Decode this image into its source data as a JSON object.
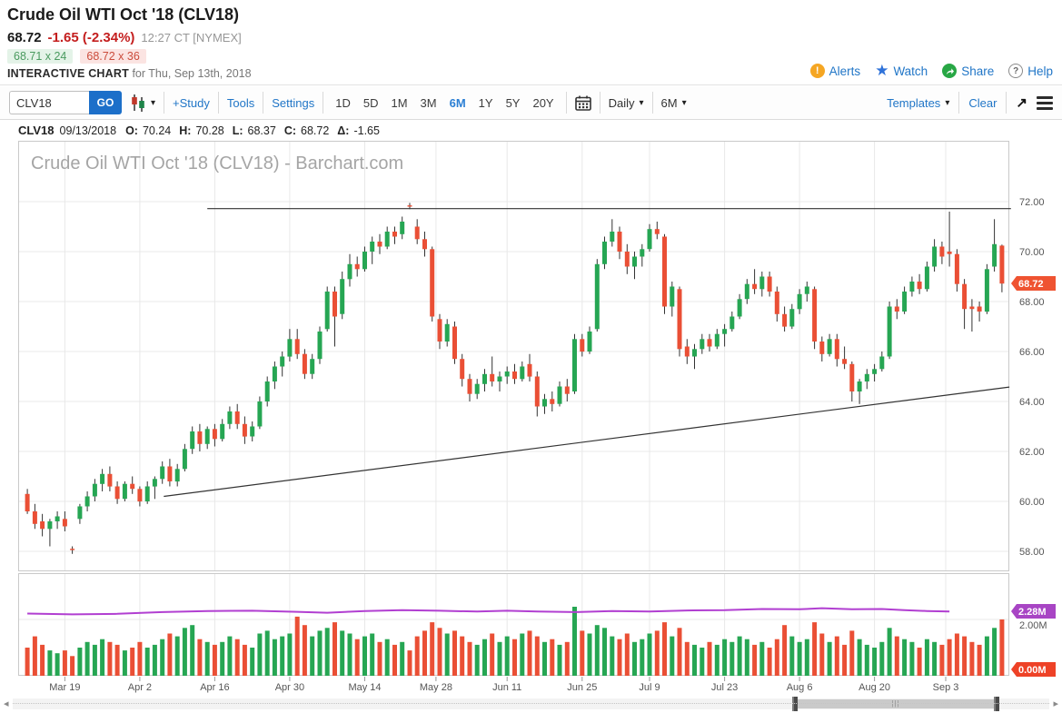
{
  "header": {
    "title": "Crude Oil WTI Oct '18 (CLV18)",
    "last_price": "68.72",
    "change": "-1.65 (-2.34%)",
    "quote_time": "12:27 CT [NYMEX]",
    "bid": "68.71 x 24",
    "ask": "68.72 x 36",
    "subtitle_bold": "INTERACTIVE CHART",
    "subtitle_rest": " for Thu, Sep 13th, 2018",
    "links": {
      "alerts": "Alerts",
      "watch": "Watch",
      "share": "Share",
      "help": "Help"
    },
    "icons": {
      "alerts": "exclamation-circle",
      "watch": "star",
      "share": "share-arrow",
      "help": "question-circle"
    },
    "colors": {
      "alerts": "#f5a623",
      "watch": "#2f72d9",
      "share": "#28a745",
      "change_red": "#c41e1e"
    }
  },
  "toolbar": {
    "symbol_value": "CLV18",
    "go_label": "GO",
    "icons": {
      "chart_type": "candlestick",
      "calendar": "calendar",
      "expand": "arrow-up-right",
      "menu": "hamburger"
    },
    "study_label": "+Study",
    "tools_label": "Tools",
    "settings_label": "Settings",
    "ranges": [
      "1D",
      "5D",
      "1M",
      "3M",
      "6M",
      "1Y",
      "5Y",
      "20Y"
    ],
    "active_range": "6M",
    "frequency_label": "Daily",
    "zoom_label": "6M",
    "templates_label": "Templates",
    "clear_label": "Clear"
  },
  "ohlc_row": {
    "symbol": "CLV18",
    "date": "09/13/2018",
    "items": [
      {
        "label": "O:",
        "value": "70.24"
      },
      {
        "label": "H:",
        "value": "70.28"
      },
      {
        "label": "L:",
        "value": "68.37"
      },
      {
        "label": "C:",
        "value": "68.72"
      },
      {
        "label": "Δ:",
        "value": "-1.65"
      }
    ]
  },
  "chart_data": {
    "type": "candlestick",
    "watermark": "Crude Oil WTI Oct '18 (CLV18) - Barchart.com",
    "symbol": "CLV18",
    "frequency": "Daily",
    "range": "6M",
    "last_price_value": 68.72,
    "last_price_label": "68.72",
    "price_axis": {
      "values": [
        72,
        70,
        68,
        66,
        64,
        62,
        60,
        58
      ],
      "min": 57.5,
      "max": 72.6
    },
    "volume_axis": {
      "grid_label": "2.00M",
      "zero_label": "0.00M",
      "grid_value": 2.0,
      "units": "M"
    },
    "open_interest": {
      "label": "2.28M",
      "value": 2.28,
      "points": [
        [
          0,
          2.21
        ],
        [
          6,
          2.18
        ],
        [
          12,
          2.2
        ],
        [
          18,
          2.26
        ],
        [
          24,
          2.3
        ],
        [
          30,
          2.31
        ],
        [
          36,
          2.27
        ],
        [
          40,
          2.24
        ],
        [
          45,
          2.3
        ],
        [
          50,
          2.33
        ],
        [
          55,
          2.31
        ],
        [
          60,
          2.28
        ],
        [
          64,
          2.31
        ],
        [
          68,
          2.28
        ],
        [
          73,
          2.26
        ],
        [
          78,
          2.3
        ],
        [
          83,
          2.28
        ],
        [
          88,
          2.32
        ],
        [
          93,
          2.33
        ],
        [
          98,
          2.37
        ],
        [
          103,
          2.36
        ],
        [
          106,
          2.4
        ],
        [
          110,
          2.36
        ],
        [
          114,
          2.37
        ],
        [
          117,
          2.33
        ],
        [
          120,
          2.3
        ],
        [
          123,
          2.28
        ]
      ]
    },
    "date_ticks": [
      {
        "label": "Mar 19",
        "index": 5
      },
      {
        "label": "Apr 2",
        "index": 15
      },
      {
        "label": "Apr 16",
        "index": 25
      },
      {
        "label": "Apr 30",
        "index": 35
      },
      {
        "label": "May 14",
        "index": 45
      },
      {
        "label": "May 28",
        "index": 54.5
      },
      {
        "label": "Jun 11",
        "index": 64
      },
      {
        "label": "Jun 25",
        "index": 74
      },
      {
        "label": "Jul 9",
        "index": 83
      },
      {
        "label": "Jul 23",
        "index": 93
      },
      {
        "label": "Aug 6",
        "index": 103
      },
      {
        "label": "Aug 20",
        "index": 113
      },
      {
        "label": "Sep 3",
        "index": 122.5
      }
    ],
    "trendlines": [
      {
        "name": "horizontal-resistance",
        "from": [
          24,
          71.72
        ],
        "to": [
          131.2,
          71.72
        ]
      },
      {
        "name": "ascending-support",
        "from": [
          18.2,
          60.2
        ],
        "to": [
          131,
          64.58
        ]
      }
    ],
    "candles": [
      [
        60.3,
        60.5,
        59.5,
        59.6
      ],
      [
        59.6,
        59.9,
        58.9,
        59.1
      ],
      [
        59.2,
        59.5,
        58.6,
        58.9
      ],
      [
        58.9,
        59.3,
        58.2,
        59.2
      ],
      [
        59.2,
        59.6,
        58.9,
        59.4
      ],
      [
        59.3,
        59.6,
        58.8,
        59.0
      ],
      [
        58.1,
        58.2,
        57.9,
        58.05
      ],
      [
        59.3,
        59.9,
        59.1,
        59.8
      ],
      [
        59.8,
        60.4,
        59.6,
        60.2
      ],
      [
        60.2,
        60.9,
        60.0,
        60.7
      ],
      [
        60.7,
        61.3,
        60.4,
        61.1
      ],
      [
        61.1,
        61.4,
        60.4,
        60.6
      ],
      [
        60.6,
        60.8,
        59.9,
        60.1
      ],
      [
        60.1,
        60.8,
        60.0,
        60.7
      ],
      [
        60.7,
        61.0,
        60.3,
        60.5
      ],
      [
        60.5,
        60.6,
        59.8,
        60.0
      ],
      [
        60.0,
        60.8,
        59.9,
        60.6
      ],
      [
        60.6,
        61.0,
        60.1,
        60.9
      ],
      [
        60.9,
        61.6,
        60.7,
        61.4
      ],
      [
        61.4,
        61.7,
        60.6,
        60.8
      ],
      [
        60.8,
        61.5,
        60.6,
        61.3
      ],
      [
        61.3,
        62.3,
        61.2,
        62.1
      ],
      [
        62.1,
        63.0,
        61.9,
        62.8
      ],
      [
        62.8,
        63.1,
        62.0,
        62.3
      ],
      [
        62.3,
        63.0,
        62.1,
        62.9
      ],
      [
        62.9,
        63.1,
        62.2,
        62.5
      ],
      [
        62.5,
        63.3,
        62.4,
        63.1
      ],
      [
        63.1,
        63.8,
        62.9,
        63.6
      ],
      [
        63.6,
        63.9,
        62.9,
        63.1
      ],
      [
        63.1,
        63.4,
        62.3,
        62.6
      ],
      [
        62.6,
        63.2,
        62.4,
        63.0
      ],
      [
        63.0,
        64.2,
        62.9,
        64.0
      ],
      [
        64.0,
        65.0,
        63.8,
        64.8
      ],
      [
        64.8,
        65.6,
        64.5,
        65.4
      ],
      [
        65.4,
        66.0,
        65.0,
        65.8
      ],
      [
        65.8,
        66.9,
        65.6,
        66.5
      ],
      [
        66.5,
        66.9,
        65.7,
        65.9
      ],
      [
        65.9,
        66.1,
        64.9,
        65.1
      ],
      [
        65.1,
        65.9,
        64.9,
        65.7
      ],
      [
        65.7,
        67.0,
        65.5,
        66.8
      ],
      [
        66.9,
        68.6,
        66.8,
        68.4
      ],
      [
        68.4,
        68.6,
        66.2,
        67.4
      ],
      [
        67.5,
        69.2,
        67.3,
        68.9
      ],
      [
        68.9,
        69.9,
        68.6,
        69.5
      ],
      [
        69.5,
        69.8,
        69.0,
        69.3
      ],
      [
        69.3,
        70.2,
        69.2,
        70.0
      ],
      [
        70.0,
        70.6,
        69.5,
        70.4
      ],
      [
        70.4,
        70.7,
        69.9,
        70.2
      ],
      [
        70.2,
        71.0,
        70.1,
        70.8
      ],
      [
        70.8,
        71.0,
        70.3,
        70.6
      ],
      [
        70.7,
        71.4,
        70.5,
        71.2
      ],
      [
        71.85,
        71.95,
        71.7,
        71.8
      ],
      [
        71.0,
        71.3,
        70.3,
        70.5
      ],
      [
        70.5,
        70.8,
        69.8,
        70.1
      ],
      [
        70.1,
        70.2,
        67.2,
        67.4
      ],
      [
        67.3,
        67.5,
        66.1,
        66.4
      ],
      [
        66.4,
        67.3,
        66.2,
        67.1
      ],
      [
        67.0,
        67.2,
        65.5,
        65.7
      ],
      [
        65.7,
        65.9,
        64.6,
        64.9
      ],
      [
        64.9,
        65.1,
        64.0,
        64.3
      ],
      [
        64.3,
        64.9,
        64.1,
        64.7
      ],
      [
        64.7,
        65.3,
        64.4,
        65.1
      ],
      [
        65.1,
        65.8,
        64.6,
        64.8
      ],
      [
        64.8,
        65.2,
        64.4,
        65.0
      ],
      [
        65.0,
        65.4,
        64.7,
        65.2
      ],
      [
        65.2,
        65.5,
        64.7,
        64.9
      ],
      [
        64.9,
        65.6,
        64.8,
        65.4
      ],
      [
        65.5,
        65.9,
        64.8,
        65.0
      ],
      [
        65.0,
        65.2,
        63.4,
        63.8
      ],
      [
        63.8,
        64.3,
        63.5,
        64.1
      ],
      [
        64.1,
        64.4,
        63.6,
        63.9
      ],
      [
        63.9,
        64.8,
        63.8,
        64.6
      ],
      [
        64.6,
        64.9,
        64.0,
        64.3
      ],
      [
        64.4,
        66.7,
        64.3,
        66.5
      ],
      [
        66.5,
        66.7,
        65.8,
        66.0
      ],
      [
        66.0,
        67.0,
        65.9,
        66.8
      ],
      [
        66.9,
        69.7,
        66.8,
        69.5
      ],
      [
        69.5,
        70.6,
        69.3,
        70.4
      ],
      [
        70.4,
        71.3,
        70.2,
        70.8
      ],
      [
        70.8,
        71.0,
        69.7,
        70.0
      ],
      [
        70.0,
        70.3,
        69.1,
        69.4
      ],
      [
        69.4,
        70.0,
        68.9,
        69.8
      ],
      [
        69.8,
        70.3,
        69.4,
        70.1
      ],
      [
        70.1,
        71.1,
        70.0,
        70.9
      ],
      [
        70.9,
        71.2,
        70.5,
        70.7
      ],
      [
        70.6,
        70.7,
        67.5,
        67.8
      ],
      [
        67.8,
        68.8,
        67.4,
        68.6
      ],
      [
        68.5,
        68.6,
        65.8,
        66.1
      ],
      [
        66.2,
        66.5,
        65.5,
        65.8
      ],
      [
        65.8,
        66.3,
        65.3,
        66.1
      ],
      [
        66.1,
        66.7,
        65.9,
        66.5
      ],
      [
        66.5,
        66.7,
        66.0,
        66.2
      ],
      [
        66.2,
        66.9,
        66.1,
        66.7
      ],
      [
        66.7,
        67.1,
        66.2,
        66.9
      ],
      [
        66.9,
        67.6,
        66.8,
        67.4
      ],
      [
        67.4,
        68.3,
        67.3,
        68.1
      ],
      [
        68.1,
        68.9,
        67.9,
        68.7
      ],
      [
        68.7,
        69.3,
        68.3,
        68.5
      ],
      [
        68.5,
        69.2,
        68.2,
        69.0
      ],
      [
        69.0,
        69.2,
        68.2,
        68.4
      ],
      [
        68.4,
        68.6,
        67.2,
        67.5
      ],
      [
        67.5,
        67.8,
        66.8,
        67.0
      ],
      [
        67.0,
        67.9,
        66.9,
        67.7
      ],
      [
        67.7,
        68.5,
        67.5,
        68.3
      ],
      [
        68.3,
        68.8,
        68.0,
        68.6
      ],
      [
        68.5,
        68.6,
        66.1,
        66.4
      ],
      [
        66.4,
        66.6,
        65.6,
        65.9
      ],
      [
        65.9,
        66.7,
        65.8,
        66.5
      ],
      [
        66.5,
        66.7,
        65.4,
        65.7
      ],
      [
        65.7,
        66.2,
        65.3,
        65.5
      ],
      [
        65.5,
        65.6,
        64.0,
        64.4
      ],
      [
        64.4,
        64.9,
        63.9,
        64.8
      ],
      [
        64.8,
        65.3,
        64.5,
        65.1
      ],
      [
        65.1,
        65.5,
        64.8,
        65.3
      ],
      [
        65.3,
        66.0,
        65.2,
        65.8
      ],
      [
        65.8,
        68.0,
        65.7,
        67.8
      ],
      [
        67.8,
        68.1,
        67.3,
        67.6
      ],
      [
        67.6,
        68.6,
        67.5,
        68.4
      ],
      [
        68.4,
        69.0,
        68.2,
        68.8
      ],
      [
        68.8,
        69.1,
        68.3,
        68.5
      ],
      [
        68.5,
        69.6,
        68.4,
        69.4
      ],
      [
        69.4,
        70.5,
        69.2,
        70.2
      ],
      [
        70.2,
        70.4,
        69.5,
        69.8
      ],
      [
        70.0,
        71.6,
        69.4,
        69.9
      ],
      [
        69.9,
        70.1,
        68.4,
        68.7
      ],
      [
        68.7,
        68.9,
        66.9,
        67.7
      ],
      [
        67.8,
        68.1,
        66.8,
        67.7
      ],
      [
        67.8,
        68.0,
        67.2,
        67.6
      ],
      [
        67.6,
        69.5,
        67.5,
        69.3
      ],
      [
        69.4,
        71.3,
        69.2,
        70.3
      ],
      [
        70.24,
        70.28,
        68.37,
        68.72
      ]
    ],
    "volume": [
      1.0,
      1.4,
      1.1,
      0.9,
      0.8,
      0.9,
      0.7,
      1.0,
      1.2,
      1.1,
      1.3,
      1.2,
      1.1,
      0.9,
      1.0,
      1.2,
      1.0,
      1.1,
      1.3,
      1.5,
      1.4,
      1.7,
      1.8,
      1.3,
      1.2,
      1.1,
      1.2,
      1.4,
      1.3,
      1.1,
      1.0,
      1.5,
      1.6,
      1.3,
      1.4,
      1.5,
      2.1,
      1.8,
      1.4,
      1.6,
      1.7,
      1.9,
      1.6,
      1.5,
      1.3,
      1.4,
      1.5,
      1.2,
      1.3,
      1.1,
      1.2,
      0.9,
      1.4,
      1.6,
      1.9,
      1.7,
      1.5,
      1.6,
      1.4,
      1.2,
      1.1,
      1.3,
      1.5,
      1.2,
      1.4,
      1.3,
      1.5,
      1.6,
      1.4,
      1.2,
      1.3,
      1.1,
      1.2,
      2.45,
      1.6,
      1.5,
      1.8,
      1.7,
      1.4,
      1.3,
      1.5,
      1.2,
      1.3,
      1.5,
      1.6,
      1.9,
      1.4,
      1.7,
      1.2,
      1.1,
      1.0,
      1.2,
      1.1,
      1.3,
      1.2,
      1.4,
      1.3,
      1.1,
      1.2,
      1.0,
      1.3,
      1.8,
      1.4,
      1.2,
      1.3,
      1.9,
      1.5,
      1.2,
      1.4,
      1.1,
      1.6,
      1.3,
      1.1,
      1.0,
      1.2,
      1.7,
      1.4,
      1.3,
      1.2,
      1.0,
      1.3,
      1.2,
      1.1,
      1.3,
      1.5,
      1.4,
      1.2,
      1.1,
      1.4,
      1.7,
      2.0
    ],
    "colors": {
      "up": "#26a653",
      "down": "#ea4f35",
      "wick": "#333333",
      "oi_line": "#b13fd1",
      "oi_badge": "#a845c4",
      "price_badge": "#ef5331",
      "vol_zero_badge": "#ee4227",
      "grid": "#e8e8e8",
      "trendline": "#333333"
    }
  },
  "scrollbar": {
    "left_arrow": "◂",
    "right_arrow": "▸",
    "mid_grip": "|||"
  }
}
